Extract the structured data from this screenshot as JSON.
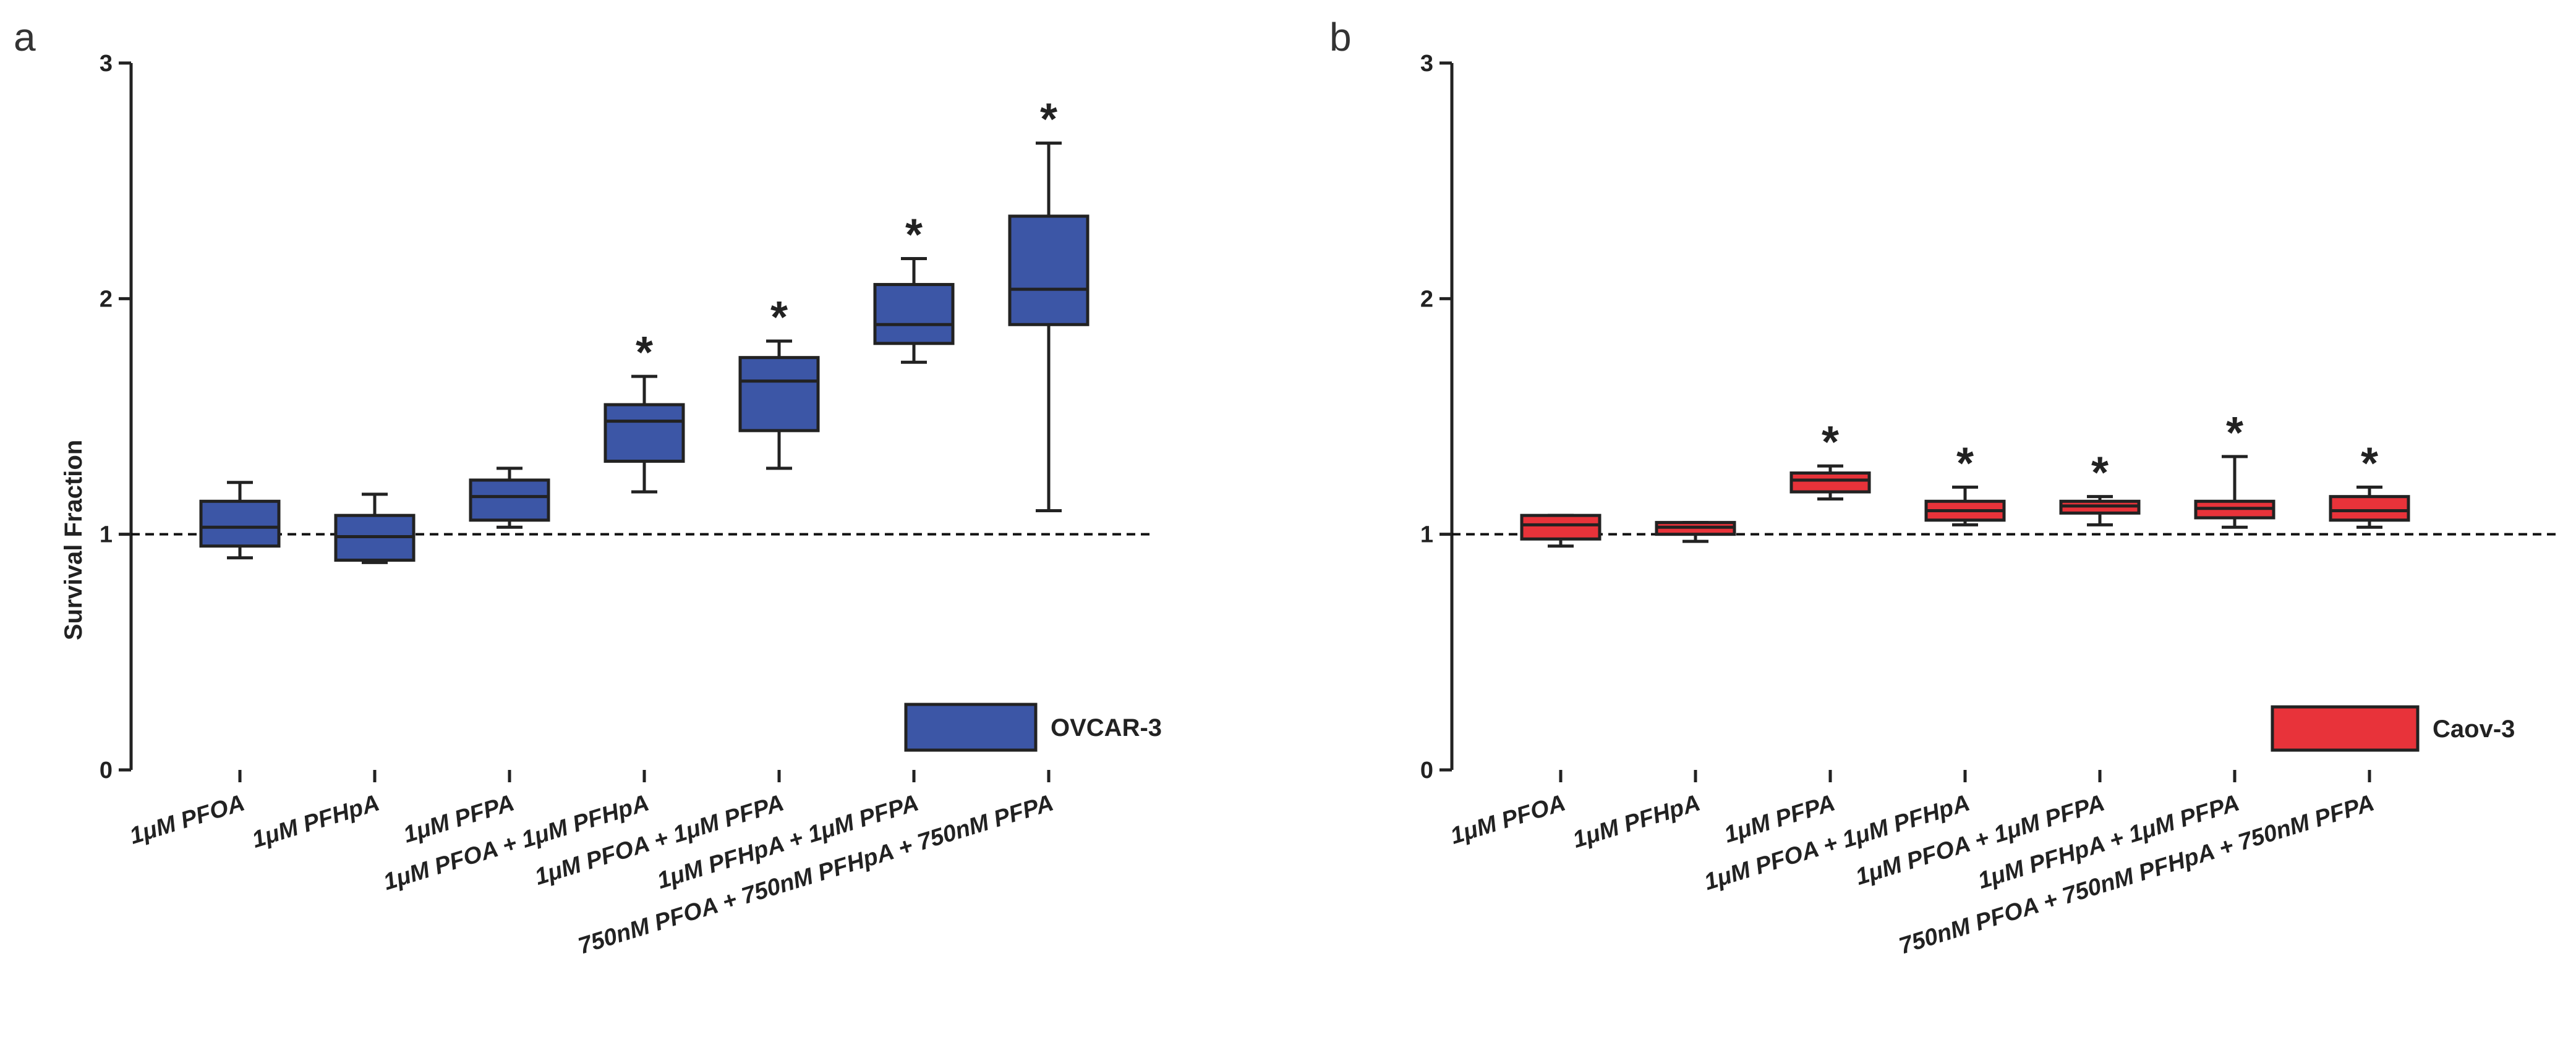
{
  "chart_data": [
    {
      "panel": "a",
      "type": "box",
      "title": "",
      "ylabel": "Survival Fraction",
      "xlabel": "",
      "ylim": [
        0,
        3
      ],
      "yticks": [
        0,
        1,
        2,
        3
      ],
      "reference_line": 1,
      "legend": {
        "label": "OVCAR-3",
        "position": "bottom-right"
      },
      "color": "#3c56a6",
      "categories": [
        "1μM PFOA",
        "1μM PFHpA",
        "1μM PFPA",
        "1μM PFOA + 1μM PFHpA",
        "1μM PFOA + 1μM PFPA",
        "1μM PFHpA + 1μM PFPA",
        "750nM PFOA + 750nM PFHpA + 750nM PFPA"
      ],
      "boxes": [
        {
          "min": 0.9,
          "q1": 0.95,
          "median": 1.03,
          "q3": 1.14,
          "max": 1.22,
          "significant": false
        },
        {
          "min": 0.88,
          "q1": 0.89,
          "median": 0.99,
          "q3": 1.08,
          "max": 1.17,
          "significant": false
        },
        {
          "min": 1.03,
          "q1": 1.06,
          "median": 1.16,
          "q3": 1.23,
          "max": 1.28,
          "significant": false
        },
        {
          "min": 1.18,
          "q1": 1.31,
          "median": 1.48,
          "q3": 1.55,
          "max": 1.67,
          "significant": true
        },
        {
          "min": 1.28,
          "q1": 1.44,
          "median": 1.65,
          "q3": 1.75,
          "max": 1.82,
          "significant": true
        },
        {
          "min": 1.73,
          "q1": 1.81,
          "median": 1.89,
          "q3": 2.06,
          "max": 2.17,
          "significant": true
        },
        {
          "min": 1.1,
          "q1": 1.89,
          "median": 2.04,
          "q3": 2.35,
          "max": 2.66,
          "significant": true
        }
      ],
      "significance_mark": "*"
    },
    {
      "panel": "b",
      "type": "box",
      "title": "",
      "ylabel": "",
      "xlabel": "",
      "ylim": [
        0,
        3
      ],
      "yticks": [
        0,
        1,
        2,
        3
      ],
      "reference_line": 1,
      "legend": {
        "label": "Caov-3",
        "position": "bottom-right"
      },
      "color": "#e8333a",
      "categories": [
        "1μM PFOA",
        "1μM PFHpA",
        "1μM PFPA",
        "1μM PFOA + 1μM PFHpA",
        "1μM PFOA + 1μM PFPA",
        "1μM PFHpA + 1μM PFPA",
        "750nM PFOA + 750nM PFHpA + 750nM PFPA"
      ],
      "boxes": [
        {
          "min": 0.95,
          "q1": 0.98,
          "median": 1.04,
          "q3": 1.08,
          "max": 1.08,
          "significant": false
        },
        {
          "min": 0.97,
          "q1": 1.0,
          "median": 1.03,
          "q3": 1.05,
          "max": 1.05,
          "significant": false
        },
        {
          "min": 1.15,
          "q1": 1.18,
          "median": 1.23,
          "q3": 1.26,
          "max": 1.29,
          "significant": true
        },
        {
          "min": 1.04,
          "q1": 1.06,
          "median": 1.1,
          "q3": 1.14,
          "max": 1.2,
          "significant": true
        },
        {
          "min": 1.04,
          "q1": 1.09,
          "median": 1.12,
          "q3": 1.14,
          "max": 1.16,
          "significant": true
        },
        {
          "min": 1.03,
          "q1": 1.07,
          "median": 1.11,
          "q3": 1.14,
          "max": 1.33,
          "significant": true
        },
        {
          "min": 1.03,
          "q1": 1.06,
          "median": 1.1,
          "q3": 1.16,
          "max": 1.2,
          "significant": true
        }
      ],
      "significance_mark": "*"
    }
  ]
}
